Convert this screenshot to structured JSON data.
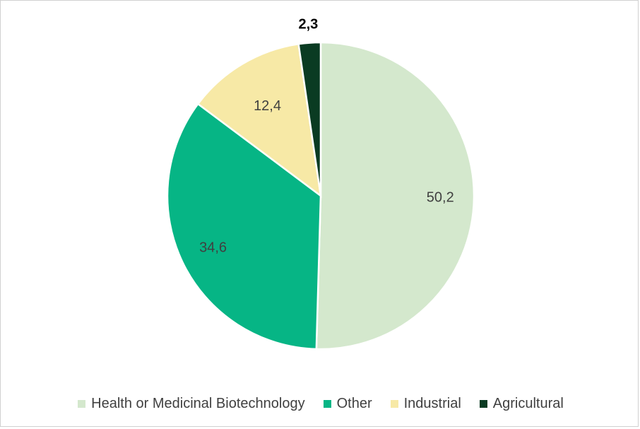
{
  "chart_data": {
    "type": "pie",
    "categories": [
      "Health or Medicinal Biotechnology",
      "Other",
      "Industrial",
      "Agricultural"
    ],
    "values": [
      50.2,
      34.6,
      12.4,
      2.3
    ],
    "value_labels": [
      "50,2",
      "34,6",
      "12,4",
      "2,3"
    ],
    "colors": [
      "#d4e8cd",
      "#06b585",
      "#f7e9a6",
      "#0a3b22"
    ],
    "start_angle_deg": 0,
    "direction": "clockwise",
    "legend_position": "bottom",
    "title": ""
  }
}
